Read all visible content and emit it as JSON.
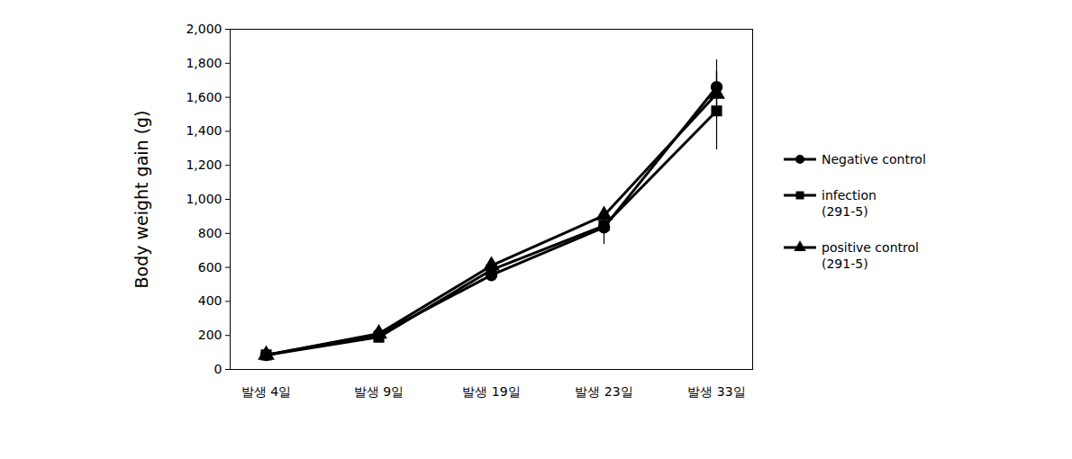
{
  "chart_data": {
    "type": "line",
    "ylabel": "Body weight gain (g)",
    "categories": [
      "발생 4일",
      "발생 9일",
      "발생 19일",
      "발생 23일",
      "발생 33일"
    ],
    "ylim": [
      0,
      2000
    ],
    "yticks": [
      0,
      200,
      400,
      600,
      800,
      1000,
      1200,
      1400,
      1600,
      1800,
      2000
    ],
    "legend": "right",
    "series": [
      {
        "name": "Negative control",
        "color": "#000000",
        "marker": "circle",
        "values": [
          85,
          205,
          555,
          835,
          1660
        ],
        "errors": [
          null,
          15,
          40,
          100,
          160
        ]
      },
      {
        "name": "infection\n(291-5)",
        "color": "#000000",
        "marker": "square",
        "values": [
          85,
          190,
          585,
          845,
          1520
        ],
        "errors": [
          null,
          15,
          35,
          50,
          230
        ]
      },
      {
        "name": "positive control\n(291-5)",
        "color": "#000000",
        "marker": "triangle",
        "values": [
          85,
          210,
          610,
          905,
          1620
        ],
        "errors": [
          null,
          15,
          30,
          50,
          130
        ]
      }
    ]
  }
}
